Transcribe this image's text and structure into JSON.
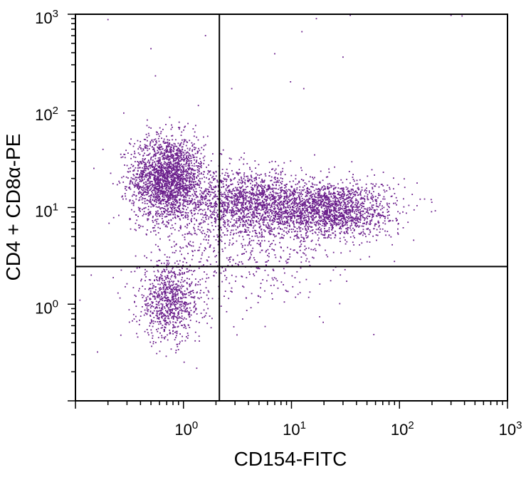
{
  "chart_data": {
    "type": "scatter",
    "xlabel": "CD154-FITC",
    "ylabel": "CD4 + CD8α-PE",
    "x_scale": "log",
    "y_scale": "log",
    "xlim": [
      0.1,
      1000
    ],
    "ylim": [
      0.1,
      1000
    ],
    "x_ticks": [
      {
        "value": 1,
        "base": "10",
        "exp": "0"
      },
      {
        "value": 10,
        "base": "10",
        "exp": "1"
      },
      {
        "value": 100,
        "base": "10",
        "exp": "2"
      },
      {
        "value": 1000,
        "base": "10",
        "exp": "3"
      }
    ],
    "y_ticks": [
      {
        "value": 1,
        "base": "10",
        "exp": "0"
      },
      {
        "value": 10,
        "base": "10",
        "exp": "1"
      },
      {
        "value": 100,
        "base": "10",
        "exp": "2"
      },
      {
        "value": 1000,
        "base": "10",
        "exp": "3"
      }
    ],
    "gate_lines": {
      "x": 2.15,
      "y": 2.45
    },
    "point_color": "#6b1f8c",
    "populations": [
      {
        "center_x": 0.72,
        "center_y": 20,
        "spread_log_x": 0.17,
        "spread_log_y": 0.22,
        "count": 2200
      },
      {
        "center_x": 0.75,
        "center_y": 1.05,
        "spread_log_x": 0.15,
        "spread_log_y": 0.2,
        "count": 850
      },
      {
        "center_x": 4.0,
        "center_y": 11,
        "spread_log_x": 0.28,
        "spread_log_y": 0.17,
        "count": 1500
      },
      {
        "center_x": 22,
        "center_y": 9.5,
        "spread_log_x": 0.3,
        "spread_log_y": 0.15,
        "count": 1800
      },
      {
        "center_x": 3.5,
        "center_y": 3.5,
        "spread_log_x": 0.45,
        "spread_log_y": 0.3,
        "count": 500
      }
    ],
    "outliers": [
      [
        0.2,
        880
      ],
      [
        0.55,
        230
      ],
      [
        0.5,
        440
      ],
      [
        1.6,
        600
      ],
      [
        2.8,
        170
      ],
      [
        7.0,
        390
      ],
      [
        9.8,
        200
      ],
      [
        12.5,
        660
      ],
      [
        13.0,
        170
      ],
      [
        30,
        360
      ],
      [
        17,
        900
      ],
      [
        35,
        975
      ],
      [
        300,
        975
      ],
      [
        380,
        960
      ],
      [
        3.6,
        985
      ],
      [
        0.28,
        95
      ],
      [
        0.18,
        40
      ],
      [
        0.14,
        2.0
      ],
      [
        0.11,
        1.1
      ],
      [
        0.16,
        0.32
      ]
    ]
  }
}
